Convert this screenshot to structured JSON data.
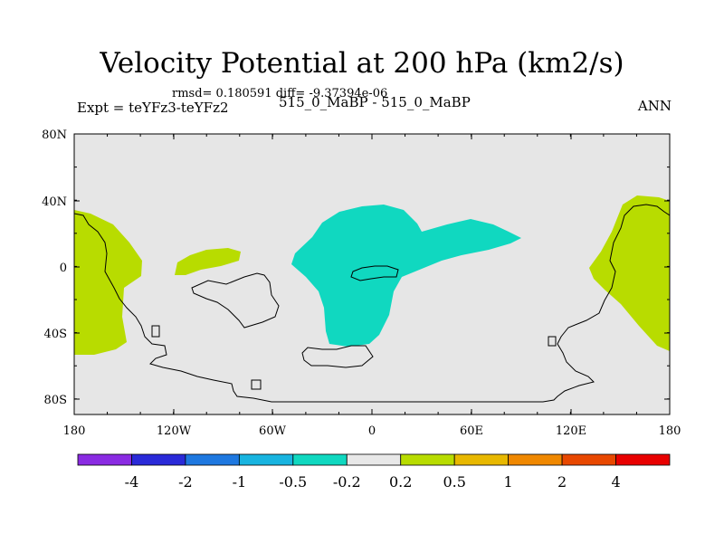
{
  "title": "Velocity Potential at 200 hPa (km2/s)",
  "stats": "rmsd= 0.180591  diff= -9.37394e-06",
  "expt_label": "Expt = teYFz3-teYFz2",
  "center_label": "515_0_MaBP - 515_0_MaBP",
  "season": "ANN",
  "lat_ticks": [
    "80N",
    "40N",
    "0",
    "40S",
    "80S"
  ],
  "lon_ticks": [
    "180",
    "120W",
    "60W",
    "0",
    "60E",
    "120E",
    "180"
  ],
  "colorbar": {
    "colors": [
      "#8a2be2",
      "#2a2ad8",
      "#1e78e0",
      "#18b4e0",
      "#10d8c0",
      "#e8e8e8",
      "#b8dc00",
      "#e8b800",
      "#f08800",
      "#e84800",
      "#e80000"
    ],
    "labels": [
      "-4",
      "-2",
      "-1",
      "-0.5",
      "-0.2",
      "0.2",
      "0.5",
      "1",
      "2",
      "4"
    ]
  },
  "map": {
    "background": "#e6e6e6",
    "positive_color": "#b8dc00",
    "negative_color": "#10d8c0"
  }
}
